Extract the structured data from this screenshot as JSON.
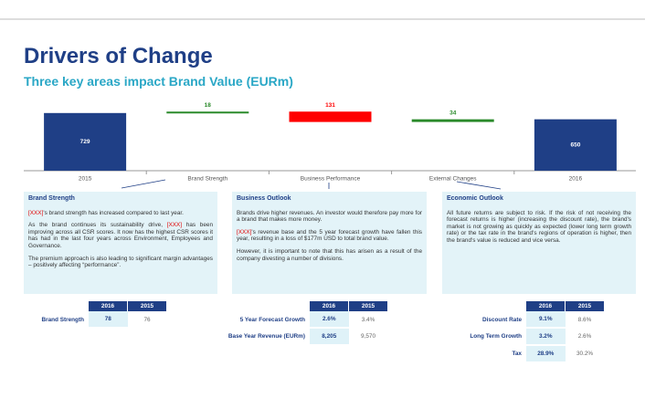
{
  "chart_data": {
    "type": "waterfall",
    "title": "Drivers of Change",
    "subtitle": "Three key areas impact Brand Value (EURm)",
    "categories": [
      "2015",
      "Brand Strength",
      "Business Performance",
      "External Changes",
      "2016"
    ],
    "values": [
      729,
      18,
      -131,
      34,
      650
    ],
    "value_labels": [
      "729",
      "18",
      "131",
      "34",
      "650"
    ],
    "colors": {
      "total": "#1f3f86",
      "increase": "#2a8a2a",
      "decrease": "#ff0000"
    },
    "ylim": [
      0,
      900
    ]
  },
  "panels": [
    {
      "heading": "Brand Strength",
      "paragraphs": [
        [
          {
            "text": "[XXX]",
            "color": "#e00000"
          },
          {
            "text": "'s brand strength has increased compared to last year."
          }
        ],
        [
          {
            "text": "As the brand continues its sustainability drive, "
          },
          {
            "text": "[XXX]",
            "color": "#e00000"
          },
          {
            "text": " has been improving across all CSR scores. It now has the highest CSR scores it has had in the last four years across Environment, Employees and Governance."
          }
        ],
        [
          {
            "text": "The premium approach is also leading to significant margin advantages – positively affecting “performance”."
          }
        ]
      ]
    },
    {
      "heading": "Business Outlook",
      "paragraphs": [
        [
          {
            "text": "Brands drive higher revenues. An investor would therefore pay more for a brand that makes more money."
          }
        ],
        [
          {
            "text": "[XXX]",
            "color": "#e00000"
          },
          {
            "text": "'s revenue base and the 5 year forecast growth have fallen this year, resulting in a loss of $177m USD to total brand value."
          }
        ],
        [
          {
            "text": "However, it is important to note that this has arisen as a result of the company divesting a number of divisions."
          }
        ]
      ]
    },
    {
      "heading": "Economic Outlook",
      "paragraphs": [
        [
          {
            "text": "All future returns are subject to risk. If the risk of not receiving the forecast returns is higher (increasing the discount rate), the brand's market is not growing as quickly as expected (lower long term growth rate) or the tax rate in the brand's regions of operation is higher, then the brand's value is reduced and vice versa."
          }
        ]
      ]
    }
  ],
  "tables": [
    {
      "header": [
        "2016",
        "2015"
      ],
      "rows": [
        [
          "Brand Strength",
          "78",
          "76"
        ]
      ]
    },
    {
      "header": [
        "2016",
        "2015"
      ],
      "rows": [
        [
          "5 Year Forecast Growth",
          "2.6%",
          "3.4%"
        ],
        [
          "Base Year Revenue (EURm)",
          "8,205",
          "9,570"
        ]
      ]
    },
    {
      "header": [
        "2016",
        "2015"
      ],
      "rows": [
        [
          "Discount Rate",
          "9.1%",
          "8.6%"
        ],
        [
          "Long Term Growth",
          "3.2%",
          "2.6%"
        ],
        [
          "Tax",
          "28.9%",
          "30.2%"
        ]
      ]
    }
  ]
}
